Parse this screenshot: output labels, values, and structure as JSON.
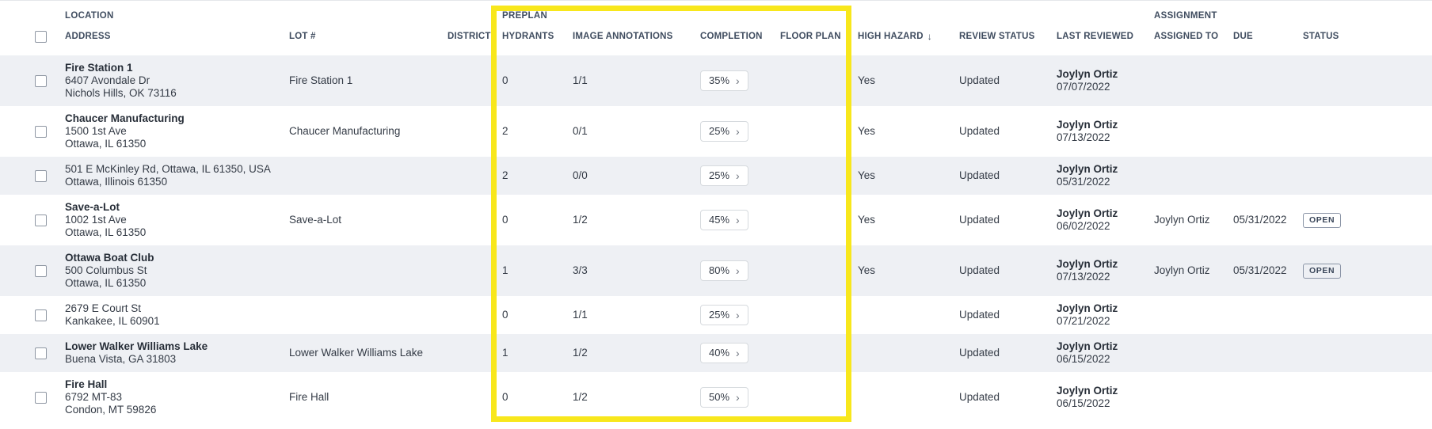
{
  "colors": {
    "highlight_yellow": "#f8e71c",
    "row_alternate": "#eef0f4",
    "header_text": "#3f4c5f",
    "body_text": "#343b46",
    "badge_border": "#8a94a6"
  },
  "icons": {
    "sort_desc": "↓",
    "chevron_right": "›"
  },
  "groups": {
    "location": "LOCATION",
    "preplan": "PREPLAN",
    "assignment": "ASSIGNMENT"
  },
  "columns": {
    "address": "ADDRESS",
    "lot": "LOT #",
    "district": "DISTRICT",
    "hydrants": "HYDRANTS",
    "image_annotations": "IMAGE ANNOTATIONS",
    "completion": "COMPLETION",
    "floor_plan": "FLOOR PLAN",
    "high_hazard": "HIGH HAZARD",
    "review_status": "REVIEW STATUS",
    "last_reviewed": "LAST REVIEWED",
    "assigned_to": "ASSIGNED TO",
    "due": "DUE",
    "status": "STATUS"
  },
  "rows": [
    {
      "name": "Fire Station 1",
      "address_lines": [
        "6407 Avondale Dr",
        "Nichols Hills, OK 73116"
      ],
      "lot": "Fire Station 1",
      "district": "",
      "hydrants": "0",
      "image_annotations": "1/1",
      "completion": "35%",
      "floor_plan": "",
      "high_hazard": "Yes",
      "review_status": "Updated",
      "reviewer": "Joylyn Ortiz",
      "reviewed_date": "07/07/2022",
      "assigned_to": "",
      "due": "",
      "status": ""
    },
    {
      "name": "Chaucer Manufacturing",
      "address_lines": [
        "1500 1st Ave",
        "Ottawa, IL 61350"
      ],
      "lot": "Chaucer Manufacturing",
      "district": "",
      "hydrants": "2",
      "image_annotations": "0/1",
      "completion": "25%",
      "floor_plan": "",
      "high_hazard": "Yes",
      "review_status": "Updated",
      "reviewer": "Joylyn Ortiz",
      "reviewed_date": "07/13/2022",
      "assigned_to": "",
      "due": "",
      "status": ""
    },
    {
      "name": "",
      "address_lines": [
        "501 E McKinley Rd, Ottawa, IL 61350, USA",
        "Ottawa, Illinois 61350"
      ],
      "lot": "",
      "district": "",
      "hydrants": "2",
      "image_annotations": "0/0",
      "completion": "25%",
      "floor_plan": "",
      "high_hazard": "Yes",
      "review_status": "Updated",
      "reviewer": "Joylyn Ortiz",
      "reviewed_date": "05/31/2022",
      "assigned_to": "",
      "due": "",
      "status": ""
    },
    {
      "name": "Save-a-Lot",
      "address_lines": [
        "1002 1st Ave",
        "Ottawa, IL 61350"
      ],
      "lot": "Save-a-Lot",
      "district": "",
      "hydrants": "0",
      "image_annotations": "1/2",
      "completion": "45%",
      "floor_plan": "",
      "high_hazard": "Yes",
      "review_status": "Updated",
      "reviewer": "Joylyn Ortiz",
      "reviewed_date": "06/02/2022",
      "assigned_to": "Joylyn Ortiz",
      "due": "05/31/2022",
      "status": "OPEN"
    },
    {
      "name": "Ottawa Boat Club",
      "address_lines": [
        "500 Columbus St",
        "Ottawa, IL 61350"
      ],
      "lot": "",
      "district": "",
      "hydrants": "1",
      "image_annotations": "3/3",
      "completion": "80%",
      "floor_plan": "",
      "high_hazard": "Yes",
      "review_status": "Updated",
      "reviewer": "Joylyn Ortiz",
      "reviewed_date": "07/13/2022",
      "assigned_to": "Joylyn Ortiz",
      "due": "05/31/2022",
      "status": "OPEN"
    },
    {
      "name": "",
      "address_lines": [
        "2679 E Court St",
        "Kankakee, IL 60901"
      ],
      "lot": "",
      "district": "",
      "hydrants": "0",
      "image_annotations": "1/1",
      "completion": "25%",
      "floor_plan": "",
      "high_hazard": "",
      "review_status": "Updated",
      "reviewer": "Joylyn Ortiz",
      "reviewed_date": "07/21/2022",
      "assigned_to": "",
      "due": "",
      "status": ""
    },
    {
      "name": "Lower Walker Williams Lake",
      "address_lines": [
        "Buena Vista, GA 31803"
      ],
      "lot": "Lower Walker Williams Lake",
      "district": "",
      "hydrants": "1",
      "image_annotations": "1/2",
      "completion": "40%",
      "floor_plan": "",
      "high_hazard": "",
      "review_status": "Updated",
      "reviewer": "Joylyn Ortiz",
      "reviewed_date": "06/15/2022",
      "assigned_to": "",
      "due": "",
      "status": ""
    },
    {
      "name": "Fire Hall",
      "address_lines": [
        "6792 MT-83",
        "Condon, MT 59826"
      ],
      "lot": "Fire Hall",
      "district": "",
      "hydrants": "0",
      "image_annotations": "1/2",
      "completion": "50%",
      "floor_plan": "",
      "high_hazard": "",
      "review_status": "Updated",
      "reviewer": "Joylyn Ortiz",
      "reviewed_date": "06/15/2022",
      "assigned_to": "",
      "due": "",
      "status": ""
    }
  ]
}
